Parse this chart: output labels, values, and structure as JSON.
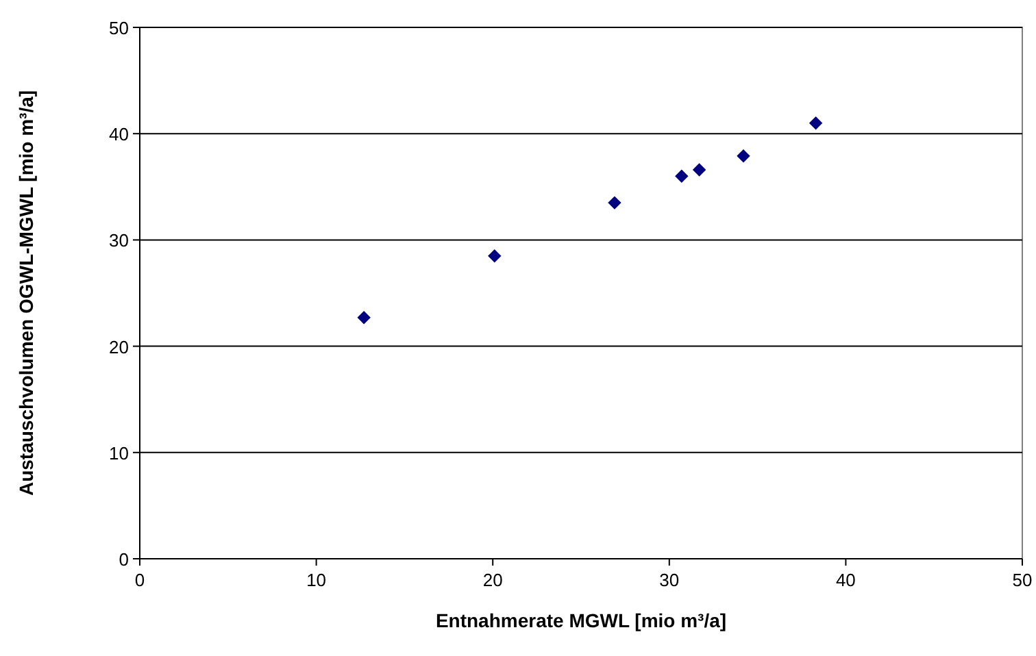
{
  "chart_data": {
    "type": "scatter",
    "xlabel": "Entnahmerate MGWL [mio m³/a]",
    "ylabel": "Austauschvolumen OGWL-MGWL [mio m³/a]",
    "x": [
      12.7,
      20.1,
      26.9,
      30.7,
      31.7,
      34.2,
      38.3
    ],
    "series": [
      {
        "color": "#000080",
        "values": [
          22.7,
          28.5,
          33.5,
          36.0,
          36.6,
          37.9,
          41.0
        ]
      }
    ],
    "xlim": [
      0,
      50
    ],
    "xticks": [
      0,
      10,
      20,
      30,
      40,
      50
    ],
    "ylim": [
      0,
      50
    ],
    "yticks": [
      0,
      10,
      20,
      30,
      40,
      50
    ],
    "grid": "y",
    "marker": "diamond"
  }
}
